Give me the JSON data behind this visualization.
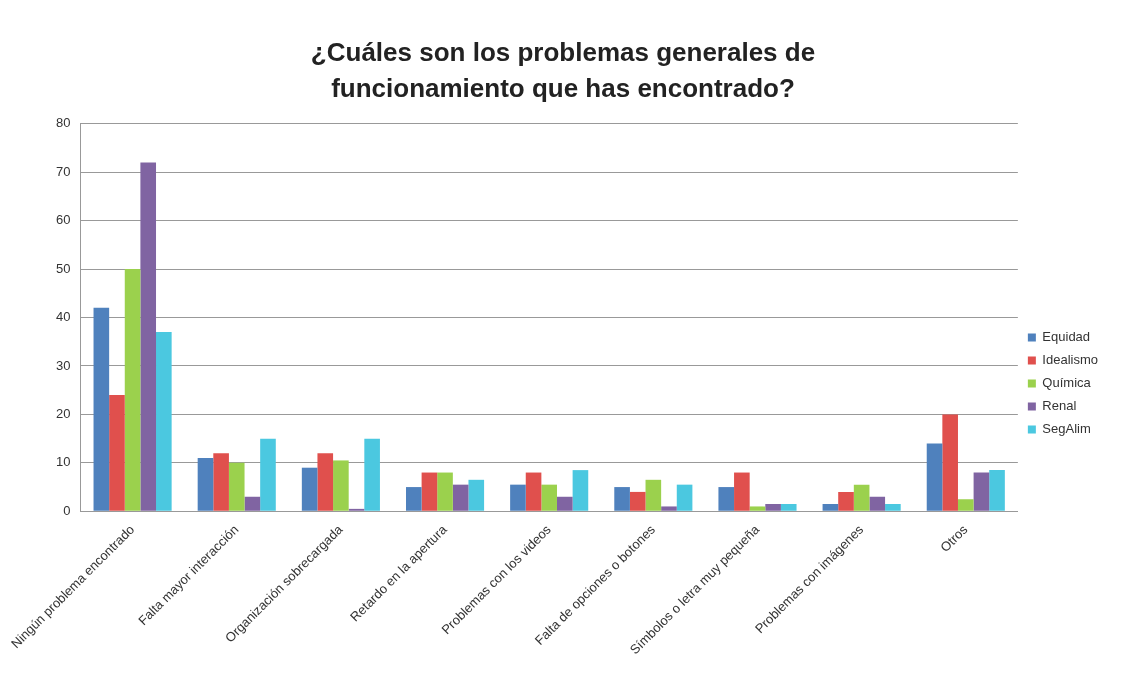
{
  "chart_data": {
    "type": "bar",
    "title": "¿Cuáles son los problemas generales de funcionamiento que has encontrado?",
    "categories": [
      "Ningún problema encontrado",
      "Falta mayor interacción",
      "Organización sobrecargada",
      "Retardo en la apertura",
      "Problemas con los videos",
      "Falta de opciones o botones",
      "Símbolos o letra muy pequeña",
      "Problemas con imágenes",
      "Otros"
    ],
    "series": [
      {
        "name": "Equidad",
        "color": "#4f81bd",
        "values": [
          42,
          11,
          9,
          5,
          5.5,
          5,
          5,
          1.5,
          14
        ]
      },
      {
        "name": "Idealismo",
        "color": "#e0504d",
        "values": [
          24,
          12,
          12,
          8,
          8,
          4,
          8,
          4,
          20
        ]
      },
      {
        "name": "Química",
        "color": "#9bd14d",
        "values": [
          50,
          10,
          10.5,
          8,
          5.5,
          6.5,
          1,
          5.5,
          2.5
        ]
      },
      {
        "name": "Renal",
        "color": "#8064a2",
        "values": [
          72,
          3,
          0.5,
          5.5,
          3,
          1,
          1.5,
          3,
          8
        ]
      },
      {
        "name": "SegAlim",
        "color": "#4bc8e0",
        "values": [
          37,
          15,
          15,
          6.5,
          8.5,
          5.5,
          1.5,
          1.5,
          8.5
        ]
      }
    ],
    "ylim": [
      0,
      80
    ],
    "yticks": [
      0,
      10,
      20,
      30,
      40,
      50,
      60,
      70,
      80
    ],
    "grid": "y",
    "legend": "right"
  }
}
